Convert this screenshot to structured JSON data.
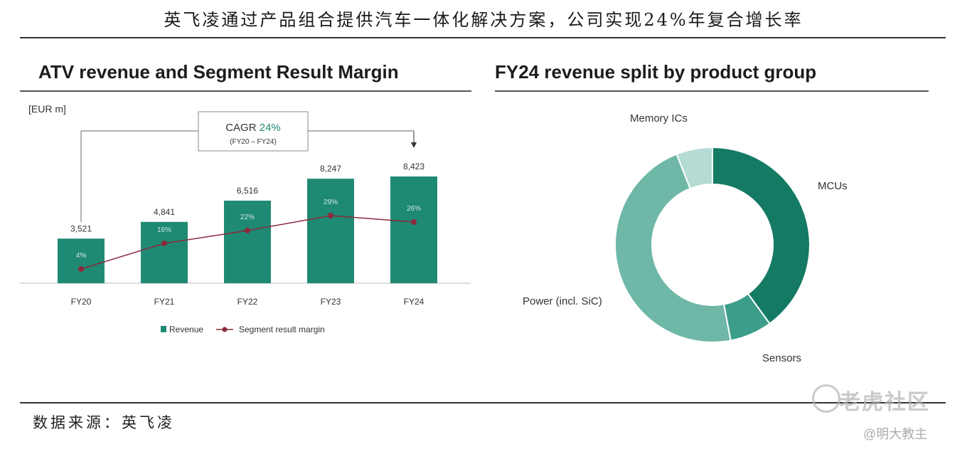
{
  "page": {
    "title": "英飞凌通过产品组合提供汽车一体化解决方案，公司实现24%年复合增长率",
    "source": "数据来源：英飞凌",
    "watermark": "老虎社区",
    "watermark_sub": "@明大教主"
  },
  "colors": {
    "teal": "#1f8a74",
    "line": "#8b2a3c",
    "donut_mcu": "#147a64",
    "donut_sensors": "#3c9e8a",
    "donut_power": "#6fb7a6",
    "donut_memory": "#b4dcd4"
  },
  "chart_data": [
    {
      "type": "bar",
      "title": "ATV revenue and Segment Result Margin",
      "ylabel": "[EUR m]",
      "categories": [
        "FY20",
        "FY21",
        "FY22",
        "FY23",
        "FY24"
      ],
      "series": [
        {
          "name": "Revenue",
          "type": "bar",
          "values": [
            3521,
            4841,
            6516,
            8247,
            8423
          ],
          "labels": [
            "3,521",
            "4,841",
            "6,516",
            "8,247",
            "8,423"
          ]
        },
        {
          "name": "Segment result margin",
          "type": "line",
          "values": [
            4,
            16,
            22,
            29,
            26
          ],
          "labels": [
            "4%",
            "16%",
            "22%",
            "29%",
            "26%"
          ]
        }
      ],
      "annotation": {
        "label": "CAGR",
        "value": "24%",
        "period": "(FY20 – FY24)"
      },
      "legend": "bottom",
      "grid": false
    },
    {
      "type": "pie",
      "title": "FY24 revenue split by product group",
      "donut": true,
      "labels": [
        "MCUs",
        "Sensors",
        "Power (incl. SiC)",
        "Memory ICs"
      ],
      "values": [
        40,
        7,
        47,
        6
      ]
    }
  ]
}
